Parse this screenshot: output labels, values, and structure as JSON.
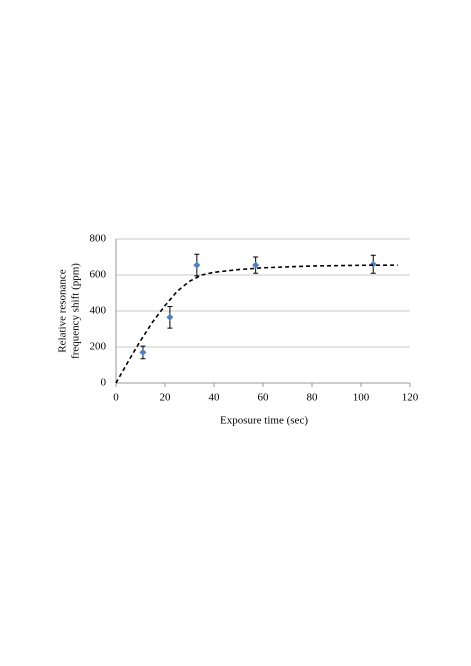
{
  "chart_data": {
    "type": "scatter",
    "x_label": "Exposure time (sec)",
    "y_label": [
      "Relative resonance",
      "frequency shift (ppm)"
    ],
    "xlim": [
      0,
      120
    ],
    "xticks": [
      0,
      20,
      40,
      60,
      80,
      100,
      120
    ],
    "ylim": [
      0,
      800
    ],
    "yticks": [
      0,
      200,
      400,
      600,
      800
    ],
    "grid": true,
    "series": [
      {
        "type": "scatter",
        "color": "#4f81bd",
        "x": [
          11,
          22,
          33,
          57,
          105
        ],
        "values": [
          170,
          365,
          655,
          655,
          660
        ],
        "errors": [
          35,
          60,
          60,
          45,
          50
        ]
      },
      {
        "type": "line",
        "color": "#000000",
        "dashed": true,
        "x": [
          0,
          5,
          10,
          15,
          20,
          25,
          30,
          35,
          40,
          50,
          60,
          70,
          80,
          90,
          100,
          115
        ],
        "values": [
          0,
          120,
          235,
          340,
          430,
          510,
          565,
          600,
          615,
          630,
          640,
          645,
          650,
          652,
          654,
          655
        ]
      }
    ]
  }
}
